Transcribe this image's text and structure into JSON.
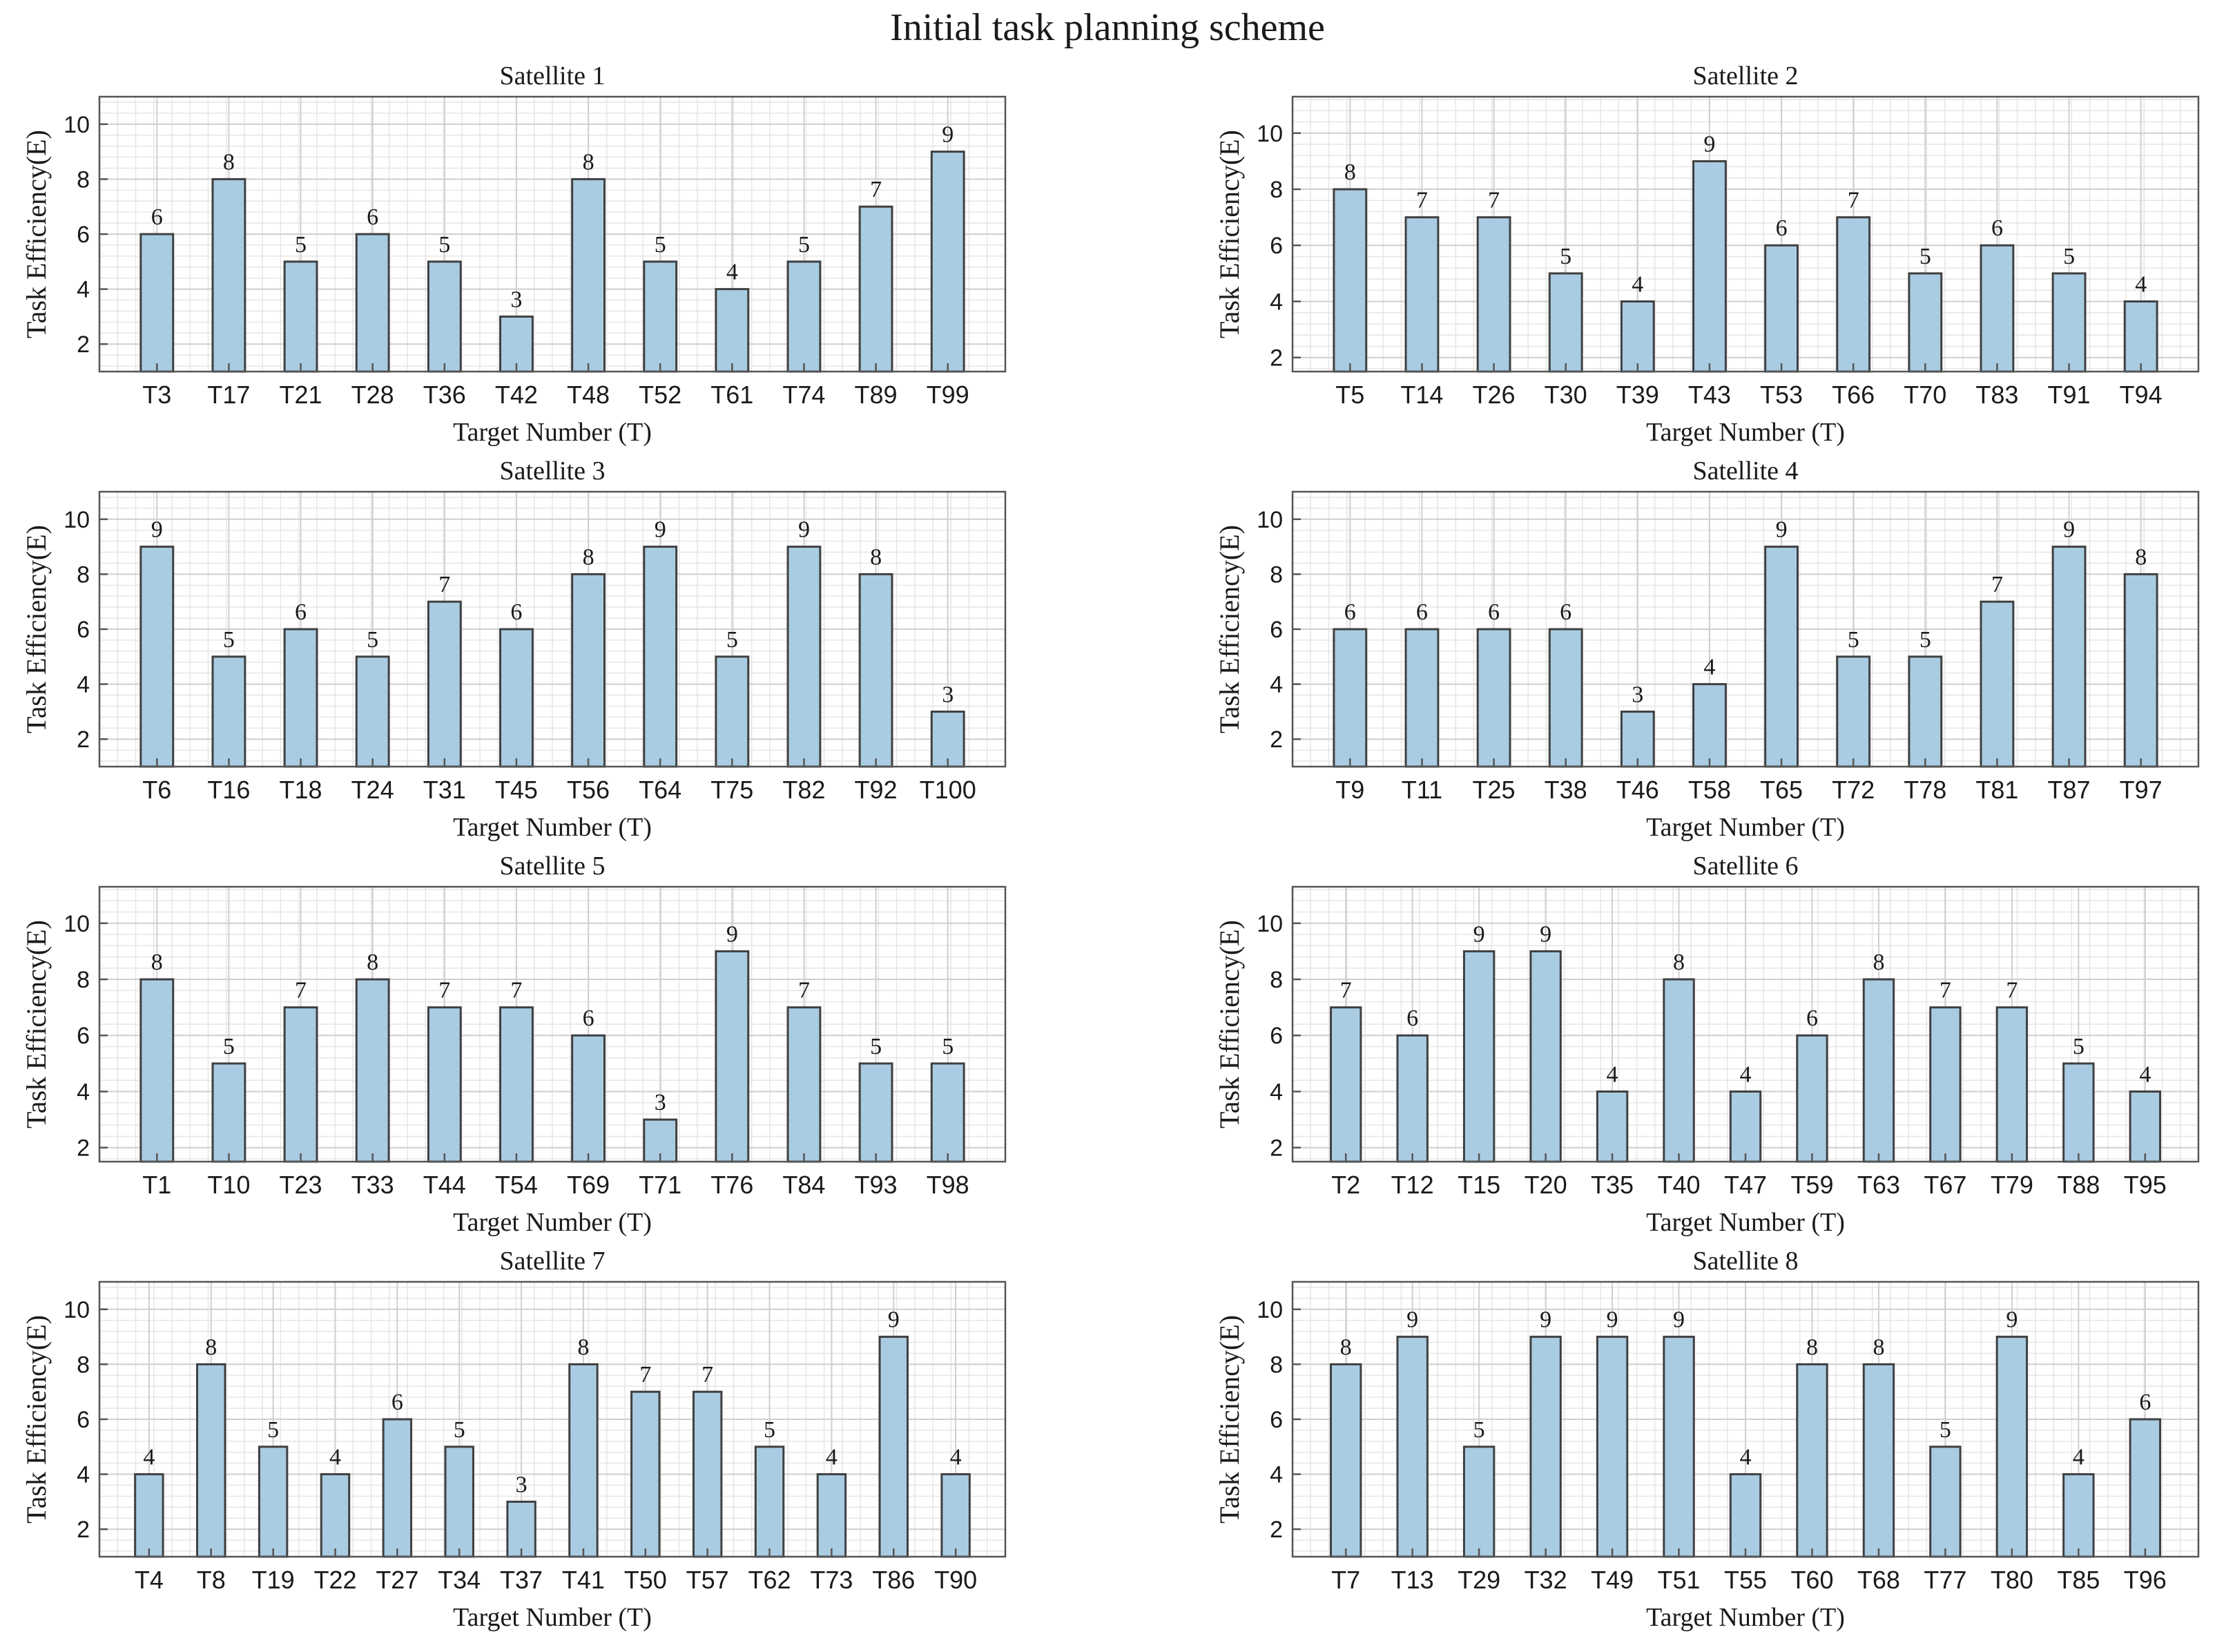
{
  "figure_title": "Initial task planning scheme",
  "colors": {
    "bar_fill": "#a9cce3",
    "bar_stroke": "#404040",
    "grid_minor": "#e6e6e6",
    "grid_major": "#cfcfcf",
    "axis": "#555555",
    "text": "#1a1a1a"
  },
  "chart_data": [
    {
      "type": "bar",
      "title": "Satellite 1",
      "xlabel": "Target Number (T)",
      "ylabel": "Task Efficiency(E)",
      "ylim": [
        1,
        11
      ],
      "yticks": [
        2,
        4,
        6,
        8,
        10
      ],
      "categories": [
        "T3",
        "T17",
        "T21",
        "T28",
        "T36",
        "T42",
        "T48",
        "T52",
        "T61",
        "T74",
        "T89",
        "T99"
      ],
      "values": [
        6,
        8,
        5,
        6,
        5,
        3,
        8,
        5,
        4,
        5,
        7,
        9
      ]
    },
    {
      "type": "bar",
      "title": "Satellite 2",
      "xlabel": "Target Number (T)",
      "ylabel": "Task Efficiency(E)",
      "ylim": [
        1.5,
        11.3
      ],
      "yticks": [
        2,
        4,
        6,
        8,
        10
      ],
      "categories": [
        "T5",
        "T14",
        "T26",
        "T30",
        "T39",
        "T43",
        "T53",
        "T66",
        "T70",
        "T83",
        "T91",
        "T94"
      ],
      "values": [
        8,
        7,
        7,
        5,
        4,
        9,
        6,
        7,
        5,
        6,
        5,
        4
      ]
    },
    {
      "type": "bar",
      "title": "Satellite 3",
      "xlabel": "Target Number (T)",
      "ylabel": "Task Efficiency(E)",
      "ylim": [
        1,
        11
      ],
      "yticks": [
        2,
        4,
        6,
        8,
        10
      ],
      "categories": [
        "T6",
        "T16",
        "T18",
        "T24",
        "T31",
        "T45",
        "T56",
        "T64",
        "T75",
        "T82",
        "T92",
        "T100"
      ],
      "values": [
        9,
        5,
        6,
        5,
        7,
        6,
        8,
        9,
        5,
        9,
        8,
        3
      ]
    },
    {
      "type": "bar",
      "title": "Satellite 4",
      "xlabel": "Target Number (T)",
      "ylabel": "Task Efficiency(E)",
      "ylim": [
        1,
        11
      ],
      "yticks": [
        2,
        4,
        6,
        8,
        10
      ],
      "categories": [
        "T9",
        "T11",
        "T25",
        "T38",
        "T46",
        "T58",
        "T65",
        "T72",
        "T78",
        "T81",
        "T87",
        "T97"
      ],
      "values": [
        6,
        6,
        6,
        6,
        3,
        4,
        9,
        5,
        5,
        7,
        9,
        8
      ]
    },
    {
      "type": "bar",
      "title": "Satellite 5",
      "xlabel": "Target Number (T)",
      "ylabel": "Task Efficiency(E)",
      "ylim": [
        1.5,
        11.3
      ],
      "yticks": [
        2,
        4,
        6,
        8,
        10
      ],
      "categories": [
        "T1",
        "T10",
        "T23",
        "T33",
        "T44",
        "T54",
        "T69",
        "T71",
        "T76",
        "T84",
        "T93",
        "T98"
      ],
      "values": [
        8,
        5,
        7,
        8,
        7,
        7,
        6,
        3,
        9,
        7,
        5,
        5
      ]
    },
    {
      "type": "bar",
      "title": "Satellite 6",
      "xlabel": "Target Number (T)",
      "ylabel": "Task Efficiency(E)",
      "ylim": [
        1.5,
        11.3
      ],
      "yticks": [
        2,
        4,
        6,
        8,
        10
      ],
      "categories": [
        "T2",
        "T12",
        "T15",
        "T20",
        "T35",
        "T40",
        "T47",
        "T59",
        "T63",
        "T67",
        "T79",
        "T88",
        "T95"
      ],
      "values": [
        7,
        6,
        9,
        9,
        4,
        8,
        4,
        6,
        8,
        7,
        7,
        5,
        4
      ]
    },
    {
      "type": "bar",
      "title": "Satellite 7",
      "xlabel": "Target Number (T)",
      "ylabel": "Task Efficiency(E)",
      "ylim": [
        1,
        11
      ],
      "yticks": [
        2,
        4,
        6,
        8,
        10
      ],
      "categories": [
        "T4",
        "T8",
        "T19",
        "T22",
        "T27",
        "T34",
        "T37",
        "T41",
        "T50",
        "T57",
        "T62",
        "T73",
        "T86",
        "T90"
      ],
      "values": [
        4,
        8,
        5,
        4,
        6,
        5,
        3,
        8,
        7,
        7,
        5,
        4,
        9,
        4
      ]
    },
    {
      "type": "bar",
      "title": "Satellite 8",
      "xlabel": "Target Number (T)",
      "ylabel": "Task Efficiency(E)",
      "ylim": [
        1,
        11
      ],
      "yticks": [
        2,
        4,
        6,
        8,
        10
      ],
      "categories": [
        "T7",
        "T13",
        "T29",
        "T32",
        "T49",
        "T51",
        "T55",
        "T60",
        "T68",
        "T77",
        "T80",
        "T85",
        "T96"
      ],
      "values": [
        8,
        9,
        5,
        9,
        9,
        9,
        4,
        8,
        8,
        5,
        9,
        4,
        6
      ]
    }
  ]
}
